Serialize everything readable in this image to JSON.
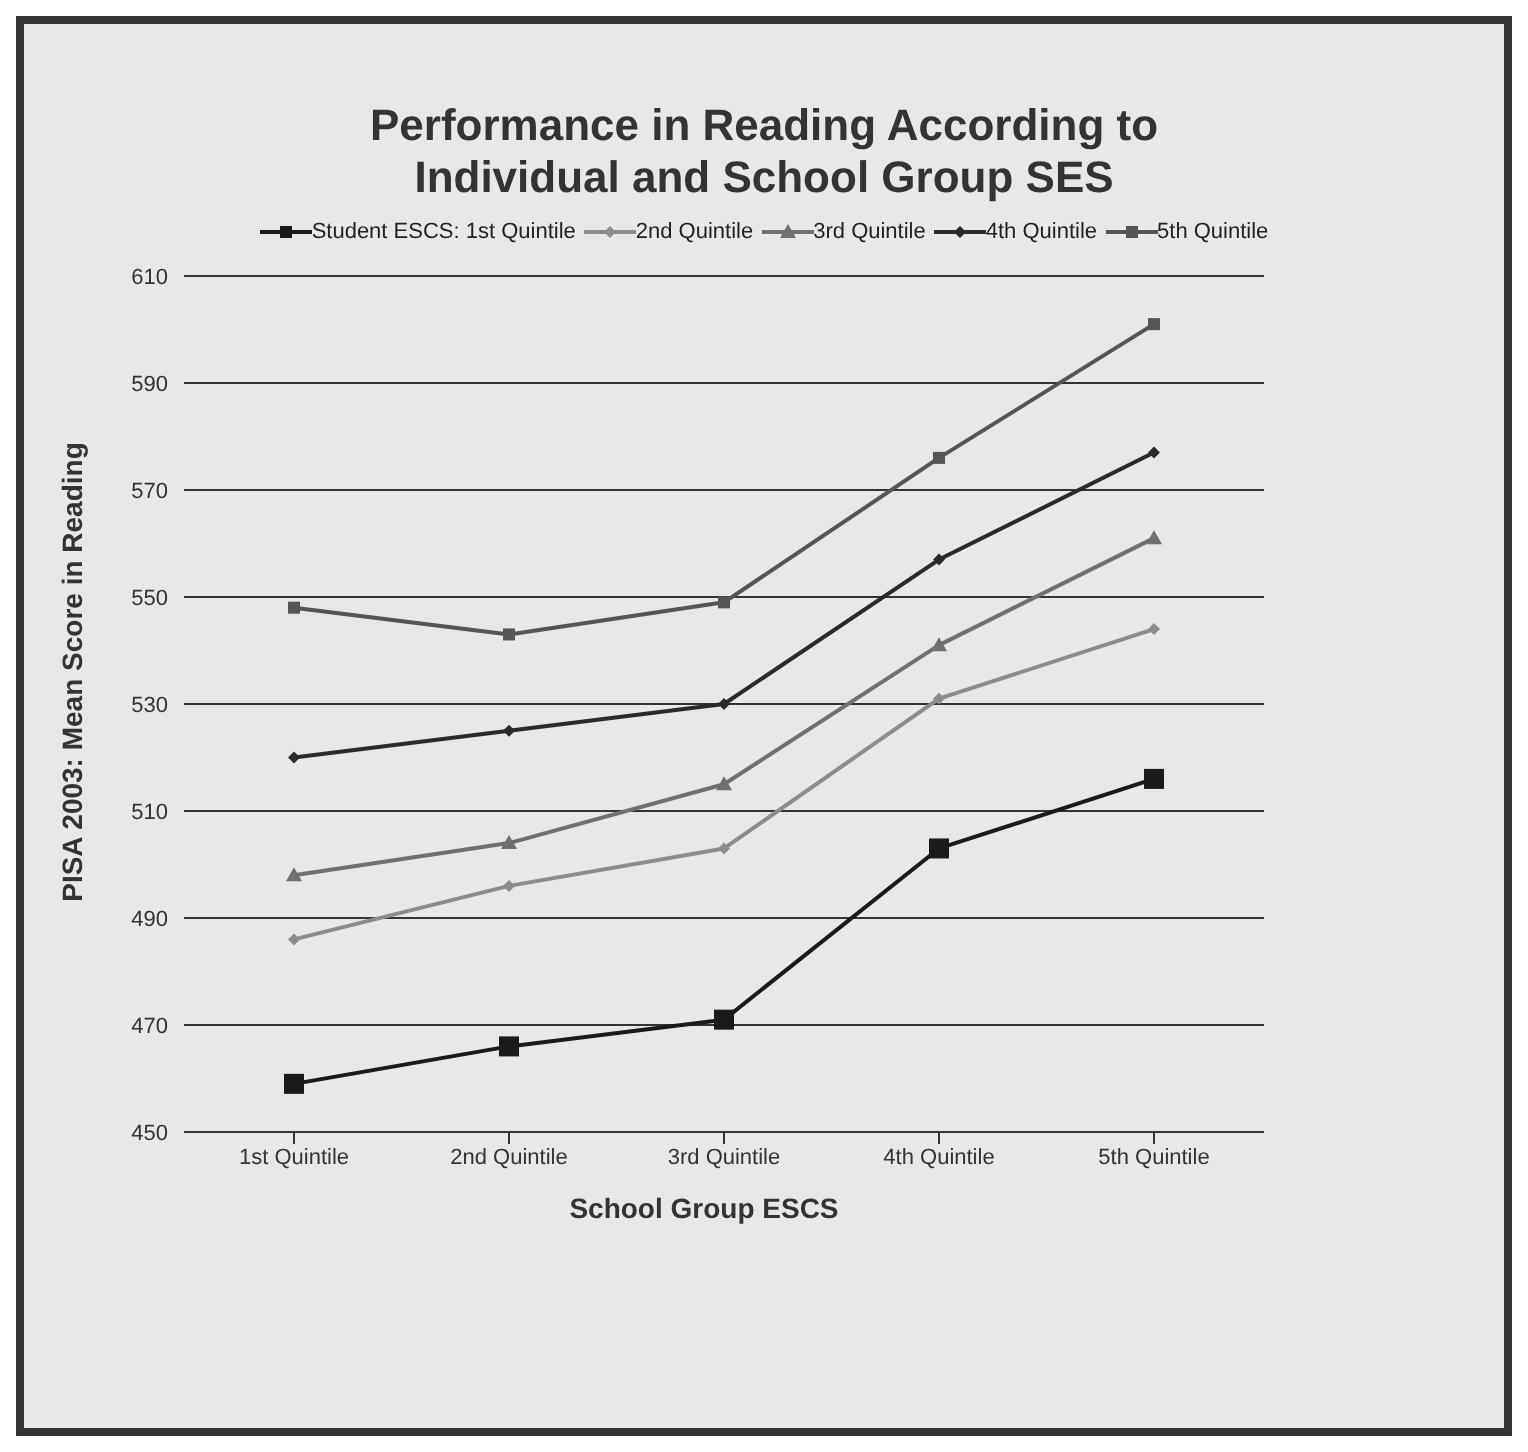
{
  "chart_data": {
    "type": "line",
    "title": "Performance in Reading According to Individual and School Group SES",
    "xlabel": "School Group ESCS",
    "ylabel": "PISA 2003: Mean Score in Reading",
    "categories": [
      "1st Quintile",
      "2nd Quintile",
      "3rd Quintile",
      "4th Quintile",
      "5th Quintile"
    ],
    "series": [
      {
        "name": "Student ESCS: 1st Quintile",
        "color": "#1a1a1a",
        "marker": "square",
        "values": [
          459,
          466,
          471,
          503,
          516
        ]
      },
      {
        "name": "2nd Quintile",
        "color": "#8c8c8c",
        "marker": "diamond",
        "values": [
          486,
          496,
          503,
          531,
          544
        ]
      },
      {
        "name": "3rd Quintile",
        "color": "#707070",
        "marker": "triangle",
        "values": [
          498,
          504,
          515,
          541,
          561
        ]
      },
      {
        "name": "4th Quintile",
        "color": "#2a2a2a",
        "marker": "diamond",
        "values": [
          520,
          525,
          530,
          557,
          577
        ]
      },
      {
        "name": "5th Quintile",
        "color": "#555555",
        "marker": "square",
        "values": [
          548,
          543,
          549,
          576,
          601
        ]
      }
    ],
    "ylim": [
      450,
      610
    ],
    "yticks": [
      450,
      470,
      490,
      510,
      530,
      550,
      570,
      590,
      610
    ],
    "grid": "y",
    "legend": "top"
  }
}
